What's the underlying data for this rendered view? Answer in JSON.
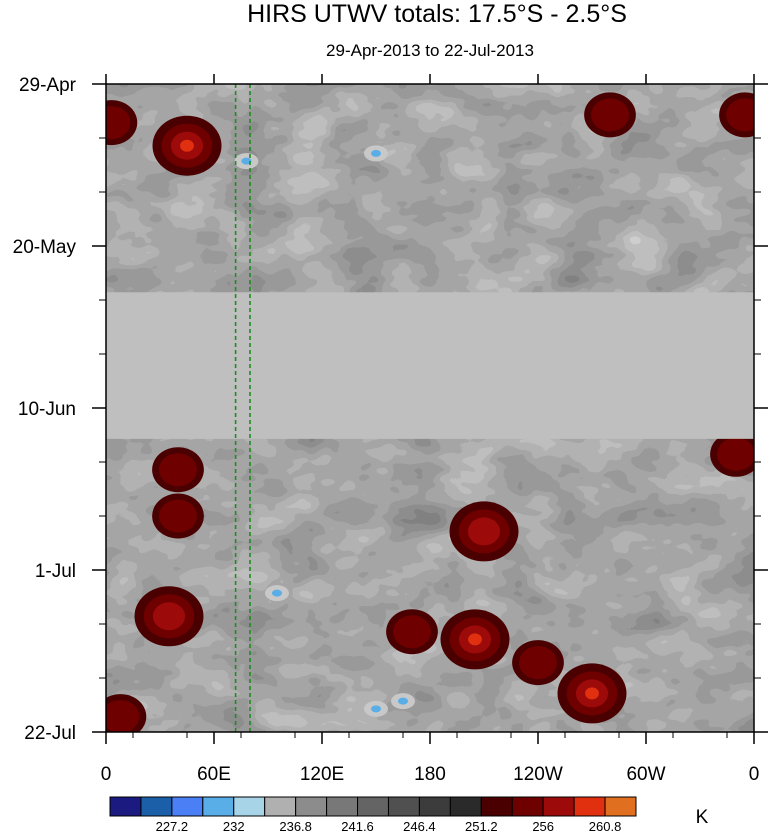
{
  "chart_data": {
    "type": "heatmap",
    "title": "HIRS UTWV totals: 17.5°S - 2.5°S",
    "subtitle": "29-Apr-2013 to 22-Jul-2013",
    "x_ticks": [
      "0",
      "60E",
      "120E",
      "180",
      "120W",
      "60W",
      "0"
    ],
    "x_tick_values": [
      0,
      60,
      120,
      180,
      240,
      300,
      360
    ],
    "y_ticks": [
      "29-Apr",
      "20-May",
      "10-Jun",
      "1-Jul",
      "22-Jul"
    ],
    "y_tick_days": [
      0,
      21,
      42,
      63,
      84
    ],
    "xlim": [
      0,
      360
    ],
    "ylim_days": [
      0,
      84
    ],
    "missing_band_days": [
      27,
      46
    ],
    "reference_lines_lon": [
      72,
      80
    ],
    "colorbar": {
      "unit": "K",
      "labels": [
        "227.2",
        "232",
        "236.8",
        "241.6",
        "246.4",
        "251.2",
        "256",
        "260.8"
      ],
      "colors": [
        "#1a1a80",
        "#1a5fa8",
        "#4a7ff5",
        "#5aaee8",
        "#a8d4e8",
        "#b0b0b0",
        "#8c8c8c",
        "#787878",
        "#646464",
        "#505050",
        "#3c3c3c",
        "#2a2a2a",
        "#4a0000",
        "#6e0000",
        "#9c0a0a",
        "#e03010",
        "#e07020"
      ]
    },
    "warm_spots": [
      {
        "lon": 45,
        "day": 8,
        "level": 3
      },
      {
        "lon": 3,
        "day": 5,
        "level": 1
      },
      {
        "lon": 280,
        "day": 4,
        "level": 1
      },
      {
        "lon": 355,
        "day": 4,
        "level": 1
      },
      {
        "lon": 40,
        "day": 50,
        "level": 1
      },
      {
        "lon": 40,
        "day": 56,
        "level": 1
      },
      {
        "lon": 210,
        "day": 58,
        "level": 2
      },
      {
        "lon": 35,
        "day": 69,
        "level": 2
      },
      {
        "lon": 205,
        "day": 72,
        "level": 3
      },
      {
        "lon": 240,
        "day": 75,
        "level": 1
      },
      {
        "lon": 270,
        "day": 79,
        "level": 3
      },
      {
        "lon": 170,
        "day": 71,
        "level": 1
      },
      {
        "lon": 8,
        "day": 82,
        "level": 1
      },
      {
        "lon": 350,
        "day": 48,
        "level": 1
      }
    ],
    "cold_spots": [
      {
        "lon": 78,
        "day": 10
      },
      {
        "lon": 150,
        "day": 9
      },
      {
        "lon": 95,
        "day": 66
      },
      {
        "lon": 150,
        "day": 81
      },
      {
        "lon": 165,
        "day": 80
      }
    ]
  }
}
